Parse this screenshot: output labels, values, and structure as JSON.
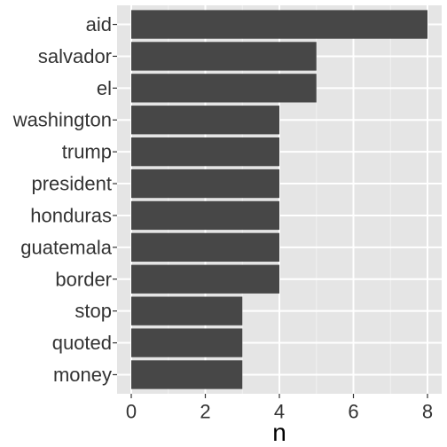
{
  "chart_data": {
    "type": "bar",
    "orientation": "horizontal",
    "categories": [
      "aid",
      "salvador",
      "el",
      "washington",
      "trump",
      "president",
      "honduras",
      "guatemala",
      "border",
      "stop",
      "quoted",
      "money"
    ],
    "values": [
      8,
      5,
      5,
      4,
      4,
      4,
      4,
      4,
      4,
      3,
      3,
      3
    ],
    "title": "",
    "xlabel": "n",
    "ylabel": "",
    "xlim": [
      0,
      8.4
    ],
    "xticks": [
      0,
      2,
      4,
      6,
      8
    ],
    "grid": true,
    "legend": "none",
    "colors": {
      "bar": "#474747",
      "panel": "#e5e5e5",
      "grid_major": "#ffffff",
      "grid_minor": "#f2f2f2",
      "text": "#333333",
      "axis_title": "#000000"
    }
  }
}
